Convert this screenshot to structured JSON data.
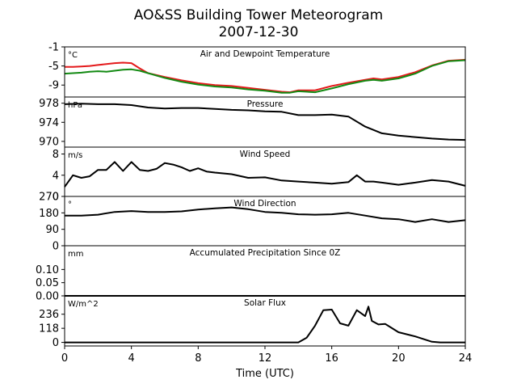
{
  "chart_data": {
    "title_line1": "AO&SS Building Tower Meteorogram",
    "title_line2": "2007-12-30",
    "xlabel": "Time (UTC)",
    "xlim": [
      0,
      24
    ],
    "xticks": [
      "0",
      "4",
      "8",
      "12",
      "16",
      "20",
      "24"
    ],
    "panels": [
      {
        "id": "temperature",
        "type": "line",
        "title": "Air and Dewpoint Temperature",
        "unit": "°C",
        "ylim": [
          -11.5,
          -1
        ],
        "yticks": [
          "-1",
          "-5",
          "-9"
        ],
        "series": [
          {
            "color": "#e41a1c",
            "x": [
              0,
              0.5,
              1,
              1.5,
              2,
              2.5,
              3,
              3.5,
              4,
              4.5,
              5,
              6,
              7,
              8,
              9,
              10,
              11,
              12,
              13,
              13.5,
              14,
              15,
              16,
              17,
              18,
              18.5,
              19,
              20,
              21,
              22,
              23,
              24
            ],
            "y": [
              -5.2,
              -5.2,
              -5.1,
              -5.0,
              -4.8,
              -4.6,
              -4.4,
              -4.3,
              -4.4,
              -5.5,
              -6.5,
              -7.3,
              -8.0,
              -8.6,
              -9.0,
              -9.2,
              -9.6,
              -10.0,
              -10.4,
              -10.5,
              -10.1,
              -10.1,
              -9.2,
              -8.5,
              -7.9,
              -7.6,
              -7.8,
              -7.3,
              -6.3,
              -4.9,
              -3.9,
              -3.7
            ]
          },
          {
            "color": "#138a13",
            "x": [
              0,
              0.5,
              1,
              1.5,
              2,
              2.5,
              3,
              3.5,
              4,
              4.5,
              5,
              6,
              7,
              8,
              9,
              10,
              11,
              12,
              13,
              13.5,
              14,
              15,
              16,
              17,
              18,
              18.5,
              19,
              20,
              21,
              22,
              23,
              24
            ],
            "y": [
              -6.6,
              -6.5,
              -6.4,
              -6.2,
              -6.1,
              -6.2,
              -6.0,
              -5.8,
              -5.7,
              -6.0,
              -6.5,
              -7.5,
              -8.3,
              -8.9,
              -9.3,
              -9.5,
              -9.9,
              -10.2,
              -10.6,
              -10.6,
              -10.3,
              -10.5,
              -9.7,
              -8.8,
              -8.1,
              -7.9,
              -8.1,
              -7.6,
              -6.6,
              -5.0,
              -4.0,
              -3.8
            ]
          }
        ]
      },
      {
        "id": "pressure",
        "type": "line",
        "title": "Pressure",
        "unit": "hPa",
        "ylim": [
          968.8,
          979.3
        ],
        "yticks": [
          "978",
          "974",
          "970"
        ],
        "series": [
          {
            "color": "#000000",
            "x": [
              0,
              1,
              2,
              3,
              4,
              5,
              6,
              7,
              8,
              9,
              10,
              11,
              12,
              13,
              14,
              15,
              16,
              17,
              18,
              19,
              20,
              21,
              22,
              23,
              24
            ],
            "y": [
              977.8,
              977.9,
              977.8,
              977.8,
              977.6,
              977.1,
              976.9,
              977.0,
              977.0,
              976.8,
              976.6,
              976.5,
              976.3,
              976.2,
              975.5,
              975.5,
              975.6,
              975.2,
              973.1,
              971.7,
              971.2,
              970.9,
              970.6,
              970.4,
              970.3
            ]
          }
        ]
      },
      {
        "id": "wind_speed",
        "type": "line",
        "title": "Wind Speed",
        "unit": "m/s",
        "ylim": [
          0,
          9.3
        ],
        "yticks": [
          "8",
          "4",
          "0"
        ],
        "series": [
          {
            "color": "#000000",
            "x": [
              0,
              0.5,
              1,
              1.5,
              2,
              2.5,
              3,
              3.5,
              4,
              4.5,
              5,
              5.5,
              6,
              6.5,
              7,
              7.5,
              8,
              8.5,
              9,
              10,
              11,
              12,
              13,
              14,
              15,
              16,
              17,
              17.5,
              18,
              18.5,
              19,
              20,
              21,
              22,
              23,
              24
            ],
            "y": [
              1.8,
              4.0,
              3.5,
              3.8,
              5.0,
              5.0,
              6.5,
              4.8,
              6.5,
              5.0,
              4.8,
              5.2,
              6.3,
              6.0,
              5.5,
              4.8,
              5.3,
              4.7,
              4.5,
              4.2,
              3.5,
              3.6,
              3.0,
              2.8,
              2.6,
              2.4,
              2.7,
              4.0,
              2.8,
              2.8,
              2.6,
              2.2,
              2.6,
              3.1,
              2.8,
              2.0
            ]
          }
        ]
      },
      {
        "id": "wind_direction",
        "type": "line",
        "title": "Wind Direction",
        "unit": "°",
        "ylim": [
          0,
          270
        ],
        "yticks": [
          "270",
          "180",
          "90",
          "0"
        ],
        "series": [
          {
            "color": "#000000",
            "x": [
              0,
              1,
              2,
              3,
              4,
              5,
              6,
              7,
              8,
              9,
              10,
              11,
              12,
              13,
              14,
              15,
              16,
              17,
              18,
              19,
              20,
              21,
              22,
              23,
              24
            ],
            "y": [
              165,
              165,
              170,
              185,
              190,
              185,
              185,
              188,
              198,
              205,
              210,
              200,
              185,
              180,
              172,
              170,
              172,
              180,
              165,
              150,
              145,
              130,
              145,
              130,
              140
            ]
          }
        ]
      },
      {
        "id": "precipitation",
        "type": "line",
        "title": "Accumulated Precipitation Since 0Z",
        "unit": "mm",
        "ylim": [
          0,
          0.19
        ],
        "yticks": [
          "0.10",
          "0.05",
          "0.00"
        ],
        "series": [
          {
            "color": "#000000",
            "x": [
              0,
              24
            ],
            "y": [
              0,
              0
            ]
          }
        ]
      },
      {
        "id": "solar_flux",
        "type": "line",
        "title": "Solar Flux",
        "unit": "W/m^2",
        "ylim": [
          -30,
          390
        ],
        "yticks": [
          "236",
          "118",
          "0"
        ],
        "series": [
          {
            "color": "#000000",
            "x": [
              0,
              14,
              14.5,
              15,
              15.5,
              16,
              16.5,
              17,
              17.5,
              18,
              18.2,
              18.4,
              18.8,
              19.2,
              19.6,
              20,
              21,
              22,
              22.5,
              24
            ],
            "y": [
              0,
              0,
              40,
              140,
              270,
              275,
              160,
              140,
              270,
              220,
              300,
              180,
              150,
              155,
              120,
              85,
              50,
              5,
              0,
              0
            ]
          }
        ]
      }
    ]
  }
}
